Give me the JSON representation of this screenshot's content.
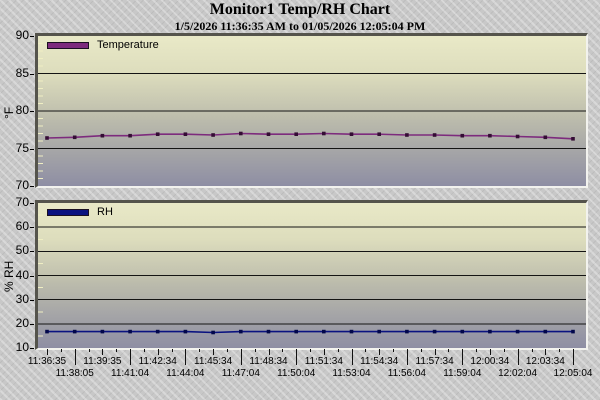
{
  "header": {
    "title": "Monitor1 Temp/RH Chart",
    "subtitle": "1/5/2026 11:36:35 AM to 01/05/2026 12:05:04 PM"
  },
  "colors": {
    "background": "#c8c8c8",
    "plot_gradient_top": "#e9e9c7",
    "plot_gradient_bottom": "#8e8ea4",
    "gridline": "#141414",
    "minor_tick": "#efeec3",
    "temperature_line": "#7d2b7d",
    "temperature_marker": "#340d34",
    "rh_line": "#0a1280",
    "rh_marker": "#02074a"
  },
  "chart_data": [
    {
      "type": "line",
      "name": "temperature-chart",
      "legend": "Temperature",
      "ylabel": "°F",
      "ylim": [
        70,
        90
      ],
      "yticks": [
        70,
        75,
        80,
        85,
        90
      ],
      "minor_tick_step": 1,
      "grid": true,
      "legend_position": "top-left",
      "line_color": "#7d2b7d",
      "marker_color": "#340d34",
      "x": [
        "11:36:35",
        "11:38:05",
        "11:39:35",
        "11:41:04",
        "11:42:34",
        "11:44:04",
        "11:45:34",
        "11:47:04",
        "11:48:34",
        "11:50:04",
        "11:51:34",
        "11:53:04",
        "11:54:34",
        "11:56:04",
        "11:57:34",
        "11:59:04",
        "12:00:34",
        "12:02:04",
        "12:03:34",
        "12:05:04"
      ],
      "values": [
        76.4,
        76.5,
        76.7,
        76.7,
        76.9,
        76.9,
        76.8,
        77.0,
        76.9,
        76.9,
        77.0,
        76.9,
        76.9,
        76.8,
        76.8,
        76.7,
        76.7,
        76.6,
        76.5,
        76.3
      ]
    },
    {
      "type": "line",
      "name": "rh-chart",
      "legend": "RH",
      "ylabel": "% RH",
      "ylim": [
        10,
        70
      ],
      "yticks": [
        10,
        20,
        30,
        40,
        50,
        60,
        70
      ],
      "minor_tick_step": 5,
      "grid": true,
      "legend_position": "top-left",
      "line_color": "#0a1280",
      "marker_color": "#02074a",
      "x": [
        "11:36:35",
        "11:38:05",
        "11:39:35",
        "11:41:04",
        "11:42:34",
        "11:44:04",
        "11:45:34",
        "11:47:04",
        "11:48:34",
        "11:50:04",
        "11:51:34",
        "11:53:04",
        "11:54:34",
        "11:56:04",
        "11:57:34",
        "11:59:04",
        "12:00:34",
        "12:02:04",
        "12:03:34",
        "12:05:04"
      ],
      "values": [
        16.8,
        16.8,
        16.8,
        16.8,
        16.8,
        16.8,
        16.4,
        16.8,
        16.8,
        16.8,
        16.8,
        16.8,
        16.8,
        16.8,
        16.8,
        16.8,
        16.8,
        16.8,
        16.8,
        16.8
      ]
    }
  ]
}
